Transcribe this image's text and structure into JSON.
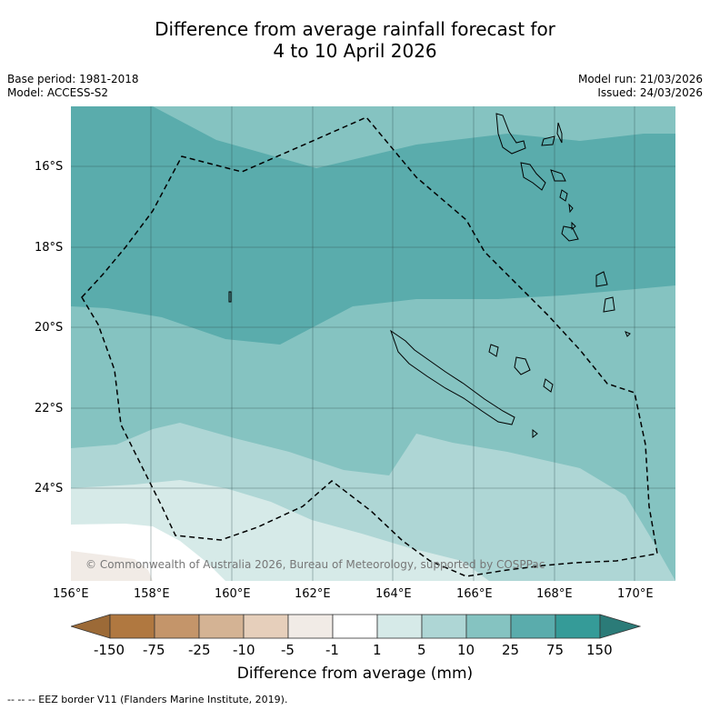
{
  "title_line1": "Difference from average rainfall forecast for",
  "title_line2": "4 to 10 April 2026",
  "meta": {
    "base_period": "Base period: 1981-2018",
    "model": "Model: ACCESS-S2",
    "model_run": "Model run: 21/03/2026",
    "issued": "Issued: 24/03/2026"
  },
  "axes": {
    "lat_labels": [
      "16°S",
      "18°S",
      "20°S",
      "22°S",
      "24°S"
    ],
    "lon_labels": [
      "156°E",
      "158°E",
      "160°E",
      "162°E",
      "164°E",
      "166°E",
      "168°E",
      "170°E"
    ]
  },
  "copyright": "© Commonwealth of Australia 2026, Bureau of Meteorology, supported by COSPPac",
  "legend": {
    "ticks": [
      "-150",
      "-75",
      "-25",
      "-10",
      "-5",
      "-1",
      "1",
      "5",
      "10",
      "25",
      "75",
      "150"
    ],
    "colors": [
      "#9c6a37",
      "#b07840",
      "#c4956a",
      "#d4b394",
      "#e6cfbb",
      "#f1ebe6",
      "#ffffff",
      "#d6eae8",
      "#aed6d5",
      "#85c3c1",
      "#5aacac",
      "#359b98",
      "#2b7b78"
    ],
    "label": "Difference from average (mm)"
  },
  "footer": "--  --  -- EEZ border V11 (Flanders Marine Institute, 2019)."
}
